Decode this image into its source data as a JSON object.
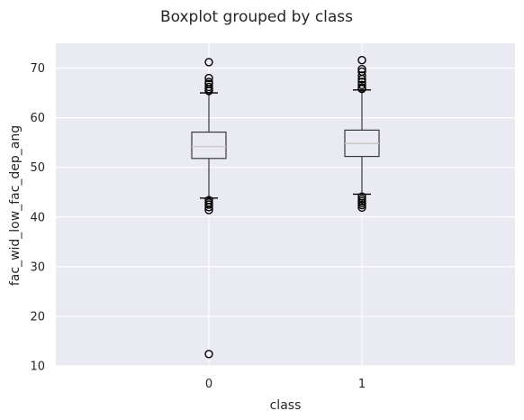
{
  "chart_data": {
    "type": "boxplot",
    "title": "Boxplot grouped by class",
    "xlabel": "class",
    "ylabel": "fac_wid_low_fac_dep_ang",
    "categories": [
      "0",
      "1"
    ],
    "ylim": [
      10,
      75
    ],
    "yticks": [
      10,
      20,
      30,
      40,
      50,
      60,
      70
    ],
    "grid": true,
    "boxes": [
      {
        "category": "0",
        "whisker_low": 43.8,
        "q1": 51.8,
        "median": 54.2,
        "q3": 57.1,
        "whisker_high": 65.0,
        "outliers": [
          71.2,
          68.0,
          67.2,
          66.8,
          66.2,
          65.8,
          65.4,
          43.4,
          42.9,
          42.5,
          42.0,
          41.4,
          12.4
        ]
      },
      {
        "category": "1",
        "whisker_low": 44.6,
        "q1": 52.2,
        "median": 54.8,
        "q3": 57.5,
        "whisker_high": 65.6,
        "outliers": [
          71.6,
          69.8,
          69.3,
          68.5,
          67.8,
          67.2,
          66.6,
          66.1,
          65.8,
          44.1,
          43.6,
          43.2,
          42.8,
          42.4,
          41.9
        ]
      }
    ]
  }
}
